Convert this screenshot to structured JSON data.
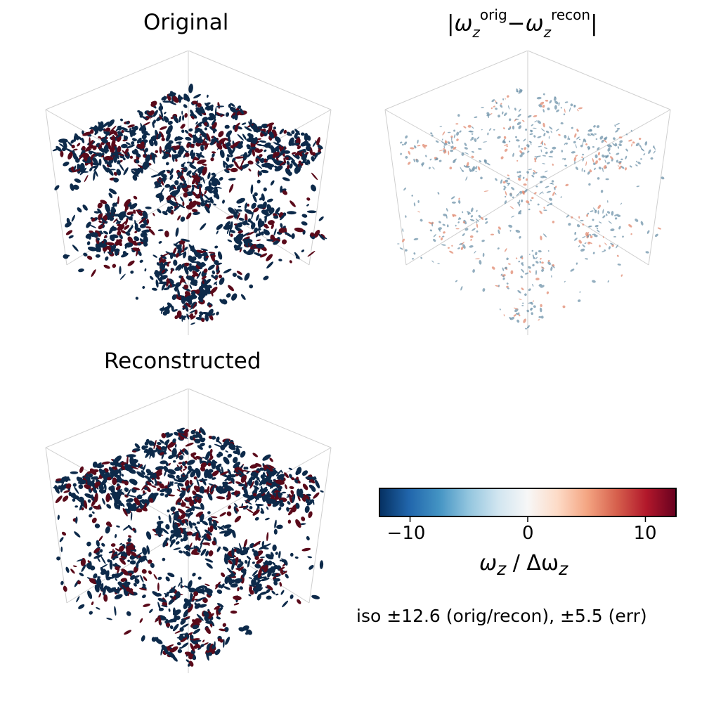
{
  "chart_data": [
    {
      "type": "isosurface-3d",
      "title": "Original",
      "field": "omega_z",
      "iso_levels": [
        -12.6,
        12.6
      ],
      "colormap": "RdBu_r",
      "colors": {
        "negative": "#0d2a4a",
        "positive": "#5a0a1a"
      }
    },
    {
      "type": "isosurface-3d",
      "title": "|ωz orig − ωz recon|",
      "title_parts": {
        "open": "|",
        "sym": "ω",
        "sub": "z",
        "sup1": "orig",
        "minus": "−",
        "sup2": "recon",
        "close": "|"
      },
      "field": "abs error",
      "iso_levels": [
        -5.5,
        5.5
      ],
      "colors": {
        "negative": "#6f93aa",
        "positive": "#e08a70"
      }
    },
    {
      "type": "isosurface-3d",
      "title": "Reconstructed",
      "field": "omega_z",
      "iso_levels": [
        -12.6,
        12.6
      ],
      "colors": {
        "negative": "#0d2a4a",
        "positive": "#5a0a1a"
      }
    }
  ],
  "colorbar": {
    "range": [
      -12.6,
      12.6
    ],
    "ticks": [
      -10,
      0,
      10
    ],
    "tick_labels": [
      "−10",
      "0",
      "10"
    ],
    "label_sym": "ω",
    "label_sub": "z",
    "label_rest": " / Δω",
    "label_sub2": "z",
    "stops": [
      "#053061",
      "#2166ac",
      "#4393c3",
      "#92c5de",
      "#d1e5f0",
      "#f7f7f7",
      "#fddbc7",
      "#f4a582",
      "#d6604d",
      "#b2182b",
      "#67001f"
    ]
  },
  "note": "iso ±12.6 (orig/recon),  ±5.5 (err)"
}
